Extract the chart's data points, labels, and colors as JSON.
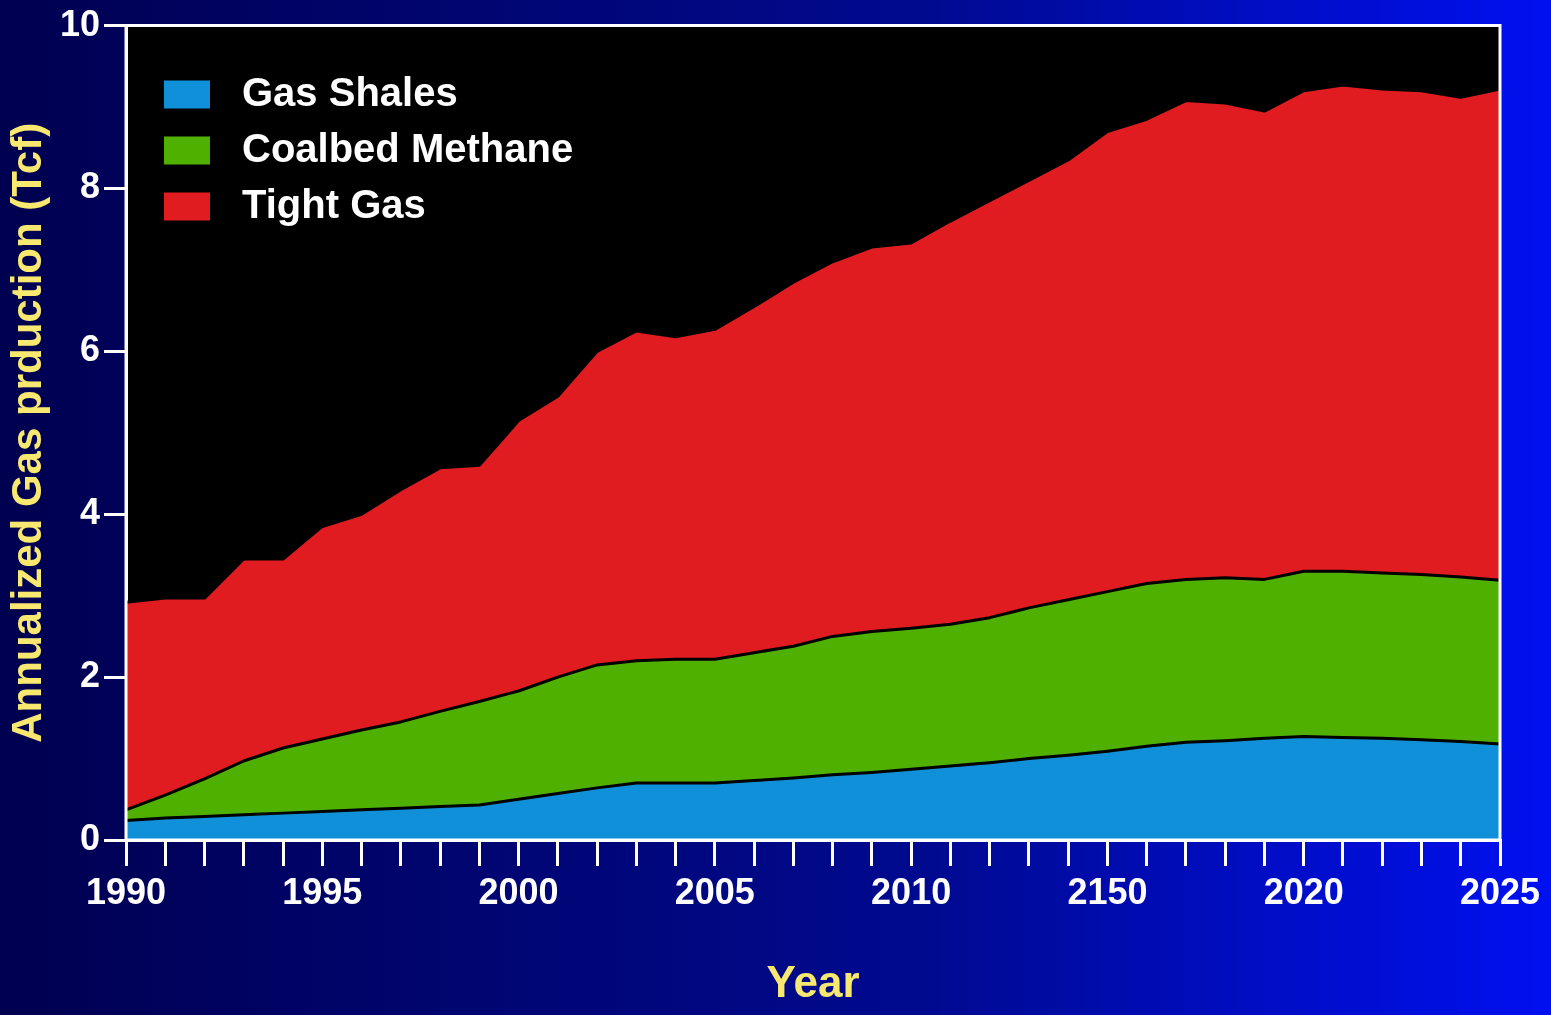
{
  "chart_data": {
    "type": "area",
    "stacked": true,
    "xlabel": "Year",
    "ylabel": "Annualized Gas prduction (Tcf)",
    "categories": [
      "1990",
      null,
      null,
      null,
      null,
      "1995",
      null,
      null,
      null,
      null,
      "2000",
      null,
      null,
      null,
      null,
      "2005",
      null,
      null,
      null,
      null,
      "2010",
      null,
      null,
      null,
      null,
      "2150",
      null,
      null,
      null,
      null,
      "2020",
      null,
      null,
      null,
      null,
      "2025"
    ],
    "series": [
      {
        "name": "Gas Shales",
        "color": "#1090d8",
        "values": [
          0.24,
          0.27,
          0.29,
          0.31,
          0.33,
          0.35,
          0.37,
          0.39,
          0.41,
          0.43,
          0.5,
          0.57,
          0.64,
          0.7,
          0.7,
          0.7,
          0.73,
          0.76,
          0.8,
          0.83,
          0.87,
          0.91,
          0.95,
          1.0,
          1.04,
          1.09,
          1.15,
          1.2,
          1.22,
          1.25,
          1.27,
          1.26,
          1.25,
          1.23,
          1.21,
          1.18
        ]
      },
      {
        "name": "Coalbed Methane",
        "color": "#50b000",
        "values": [
          0.13,
          0.28,
          0.46,
          0.66,
          0.8,
          0.89,
          0.98,
          1.06,
          1.17,
          1.27,
          1.33,
          1.43,
          1.51,
          1.5,
          1.52,
          1.52,
          1.57,
          1.62,
          1.7,
          1.73,
          1.73,
          1.74,
          1.78,
          1.85,
          1.91,
          1.96,
          2.0,
          2.0,
          2.0,
          1.95,
          2.03,
          2.04,
          2.03,
          2.03,
          2.02,
          2.01
        ]
      },
      {
        "name": "Tight Gas",
        "color": "#e01c20",
        "values": [
          2.55,
          2.42,
          2.22,
          2.48,
          2.32,
          2.61,
          2.65,
          2.85,
          2.99,
          2.9,
          3.32,
          3.45,
          3.85,
          4.05,
          3.96,
          4.05,
          4.25,
          4.47,
          4.6,
          4.72,
          4.73,
          4.95,
          5.12,
          5.25,
          5.4,
          5.65,
          5.7,
          5.88,
          5.83,
          5.75,
          5.9,
          5.97,
          5.94,
          5.94,
          5.89,
          6.03
        ]
      }
    ],
    "ylim": [
      0,
      10
    ],
    "yticks": [
      0,
      2,
      4,
      6,
      8,
      10
    ],
    "legend": "top left"
  }
}
